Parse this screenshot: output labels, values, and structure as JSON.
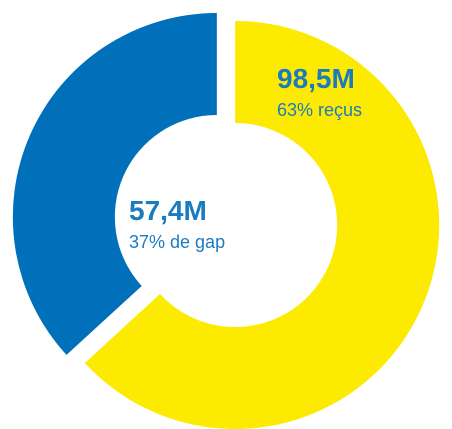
{
  "chart_data": {
    "type": "pie",
    "style": "donut",
    "slices": [
      {
        "value": 98.5,
        "percent": 63,
        "color": "#FCEA00",
        "value_label": "98,5M",
        "sub_label": "63% reçus"
      },
      {
        "value": 57.4,
        "percent": 37,
        "color": "#0070BA",
        "value_label": "57,4M",
        "sub_label": "37% de gap"
      }
    ],
    "label_color": "#1B7BC0",
    "legend": "none"
  }
}
